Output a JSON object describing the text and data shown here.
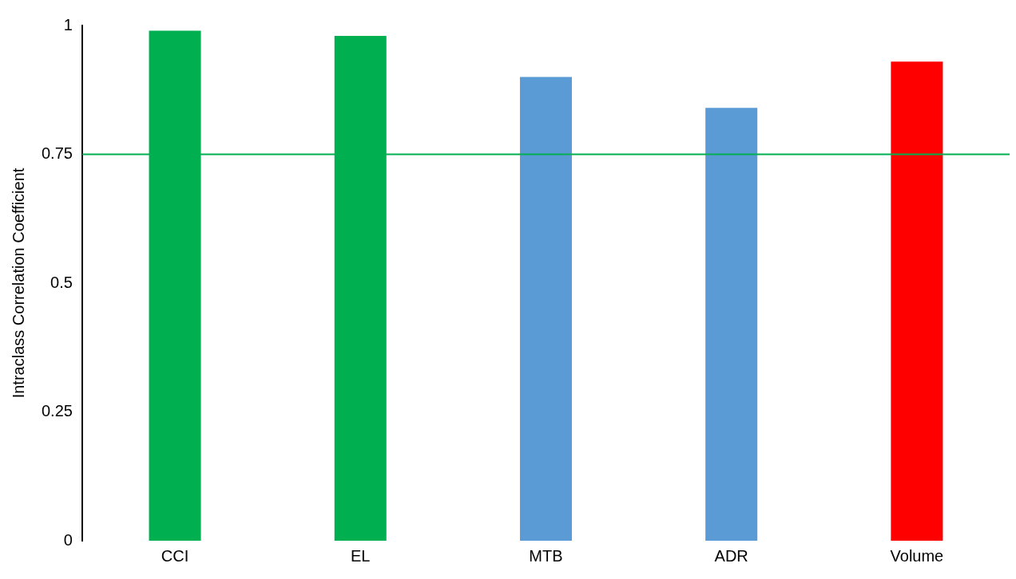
{
  "chart_data": {
    "type": "bar",
    "ylabel": "Intraclass Correlation Coefficient",
    "categories": [
      "CCI",
      "EL",
      "MTB",
      "ADR",
      "Volume"
    ],
    "values": [
      0.99,
      0.98,
      0.9,
      0.84,
      0.93
    ],
    "colors": [
      "#00b050",
      "#00b050",
      "#5b9bd5",
      "#5b9bd5",
      "#ff0000"
    ],
    "ylim": [
      0,
      1
    ],
    "yticks": [
      0,
      0.25,
      0.5,
      0.75,
      1
    ],
    "grid": false,
    "legend": false,
    "ref_lines": [
      {
        "axis": "y",
        "value": 0.75,
        "color": "#00b050"
      }
    ]
  }
}
